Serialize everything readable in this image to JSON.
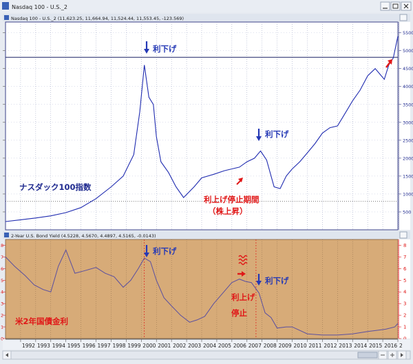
{
  "window": {
    "title": "Nasdaq 100 - U.S._2",
    "buttons": [
      "minimize",
      "maximize",
      "close"
    ]
  },
  "panels": {
    "top": {
      "header": "Nasdaq 100 - U.S._2 (11,623.25, 11,664.94, 11,524.44, 11,553.45, -123.569)",
      "y_ticks": [
        "5500",
        "5000",
        "4500",
        "4000",
        "3500",
        "3000",
        "2500",
        "2000",
        "1500",
        "1000",
        "500"
      ],
      "annotations": {
        "cut_2000": "利下げ",
        "cut_2007": "利下げ",
        "index_name": "ナスダック100指数",
        "pause_line1": "利上げ停止期間",
        "pause_line2": "（株上昇）"
      }
    },
    "bottom": {
      "header": "2-Year U.S. Bond Yield (4.5228, 4.5670, 4.4897, 4.5165, -0.0143)",
      "y_ticks": [
        "8",
        "7",
        "6",
        "5",
        "4",
        "3",
        "2",
        "1",
        "0"
      ],
      "annotations": {
        "cut_2000": "利下げ",
        "cut_2007": "利下げ",
        "hike_pause_line1": "利上げ",
        "hike_pause_line2": "停止",
        "yield_name": "米2年国債金利"
      }
    },
    "x_axis": {
      "years": [
        "1992",
        "1993",
        "1994",
        "1995",
        "1996",
        "1997",
        "1998",
        "1999",
        "2000",
        "2001",
        "2002",
        "2003",
        "2004",
        "2005",
        "2006",
        "2007",
        "2008",
        "2009",
        "2010",
        "2011",
        "2012",
        "2013",
        "2014",
        "2015",
        "2016",
        "2"
      ]
    }
  },
  "colors": {
    "price_line": "#1f2bb0",
    "yield_line": "#5a4fa0",
    "lower_bg": "#d7ab78",
    "upper_bg": "#ffffff",
    "annotation_blue": "#2438b5",
    "annotation_red": "#e01818"
  },
  "chart_data": [
    {
      "type": "line",
      "series": [
        {
          "x": [
            1991.0,
            1992.0,
            1993.0,
            1994.0,
            1995.0,
            1996.0,
            1997.0,
            1998.0,
            1998.8,
            1999.5,
            1999.9,
            2000.2,
            2000.5,
            2000.8,
            2001.0,
            2001.3,
            2001.8,
            2002.3,
            2002.8,
            2003.5,
            2004.0,
            2004.8,
            2005.5,
            2006.0,
            2006.5,
            2007.0,
            2007.5,
            2007.9,
            2008.3,
            2008.8,
            2009.2,
            2009.6,
            2010.0,
            2010.5,
            2011.0,
            2011.5,
            2012.0,
            2012.5,
            2013.0,
            2013.5,
            2014.0,
            2014.5,
            2015.0,
            2015.5,
            2015.8,
            2016.1,
            2016.4,
            2016.7,
            2017.0
          ],
          "y": [
            230,
            280,
            330,
            390,
            480,
            620,
            870,
            1200,
            1500,
            2100,
            3300,
            4600,
            3700,
            3500,
            2600,
            1900,
            1600,
            1200,
            900,
            1200,
            1450,
            1550,
            1650,
            1700,
            1750,
            1900,
            2000,
            2200,
            1950,
            1200,
            1150,
            1500,
            1700,
            1900,
            2150,
            2400,
            2700,
            2850,
            2900,
            3250,
            3600,
            3900,
            4300,
            4500,
            4350,
            4200,
            4600,
            4800,
            5400
          ]
        }
      ],
      "ylim": [
        0,
        5800
      ],
      "yticks": [
        500,
        1000,
        1500,
        2000,
        2500,
        3000,
        3500,
        4000,
        4500,
        5000,
        5500
      ],
      "reference_level": 4816
    },
    {
      "type": "line",
      "series": [
        {
          "x": [
            1991.0,
            1991.6,
            1992.3,
            1992.9,
            1993.5,
            1994.0,
            1994.5,
            1995.0,
            1995.6,
            1996.2,
            1997.0,
            1997.6,
            1998.2,
            1998.8,
            1999.3,
            1999.8,
            2000.2,
            2000.6,
            2001.0,
            2001.5,
            2002.0,
            2002.6,
            2003.2,
            2003.7,
            2004.2,
            2004.8,
            2005.4,
            2006.0,
            2006.5,
            2006.9,
            2007.3,
            2007.8,
            2008.2,
            2008.6,
            2009.0,
            2009.6,
            2010.0,
            2011.0,
            2012.0,
            2013.0,
            2014.0,
            2015.0,
            2015.6,
            2016.2,
            2016.8,
            2017.0
          ],
          "y": [
            7.0,
            6.2,
            5.4,
            4.6,
            4.2,
            4.0,
            6.2,
            7.6,
            5.6,
            5.8,
            6.1,
            5.6,
            5.3,
            4.4,
            5.0,
            6.0,
            6.9,
            6.6,
            5.0,
            3.5,
            2.8,
            2.0,
            1.4,
            1.6,
            1.9,
            3.0,
            3.9,
            4.8,
            5.1,
            4.9,
            4.8,
            3.9,
            2.2,
            1.8,
            0.9,
            1.0,
            1.0,
            0.4,
            0.3,
            0.3,
            0.4,
            0.6,
            0.7,
            0.8,
            1.0,
            1.3
          ]
        }
      ],
      "ylim": [
        0,
        8.5
      ],
      "yticks": [
        0,
        1,
        2,
        3,
        4,
        5,
        6,
        7,
        8
      ]
    }
  ]
}
